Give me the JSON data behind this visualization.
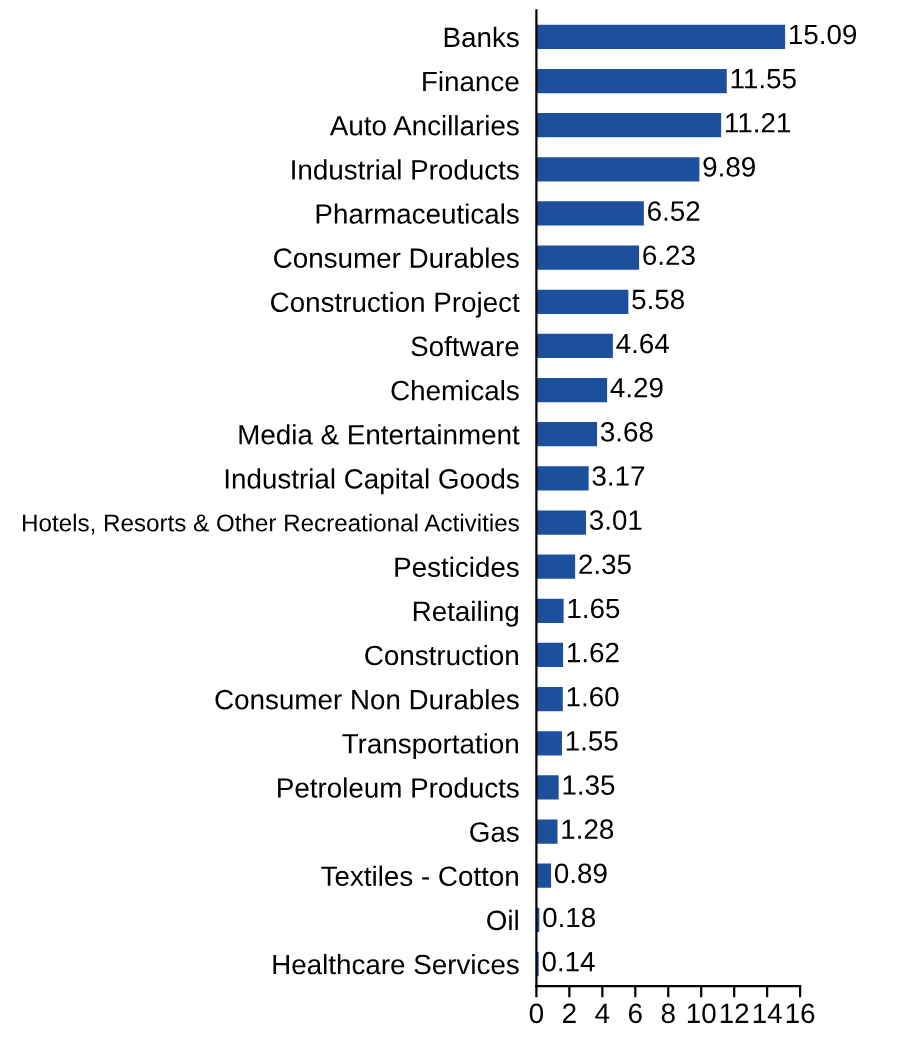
{
  "chart_data": {
    "type": "bar",
    "orientation": "horizontal",
    "categories": [
      "Banks",
      "Finance",
      "Auto Ancillaries",
      "Industrial Products",
      "Pharmaceuticals",
      "Consumer Durables",
      "Construction Project",
      "Software",
      "Chemicals",
      "Media & Entertainment",
      "Industrial Capital Goods",
      "Hotels, Resorts & Other Recreational Activities",
      "Pesticides",
      "Retailing",
      "Construction",
      "Consumer Non Durables",
      "Transportation",
      "Petroleum Products",
      "Gas",
      "Textiles - Cotton",
      "Oil",
      "Healthcare Services"
    ],
    "values": [
      15.09,
      11.55,
      11.21,
      9.89,
      6.52,
      6.23,
      5.58,
      4.64,
      4.29,
      3.68,
      3.17,
      3.01,
      2.35,
      1.65,
      1.62,
      1.6,
      1.55,
      1.35,
      1.28,
      0.89,
      0.18,
      0.14
    ],
    "value_labels": [
      "15.09",
      "11.55",
      "11.21",
      "9.89",
      "6.52",
      "6.23",
      "5.58",
      "4.64",
      "4.29",
      "3.68",
      "3.17",
      "3.01",
      "2.35",
      "1.65",
      "1.62",
      "1.60",
      "1.55",
      "1.35",
      "1.28",
      "0.89",
      "0.18",
      "0.14"
    ],
    "color": "#1c4f9c",
    "xlim": [
      0,
      16
    ],
    "xticks": [
      0,
      2,
      4,
      6,
      8,
      10,
      12,
      14,
      16
    ],
    "grid": false,
    "legend": false
  }
}
